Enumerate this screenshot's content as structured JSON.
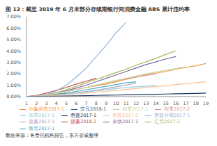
{
  "chart_data": {
    "type": "line",
    "title": "图 12：截至 2019 年 6 月末部分存续期银行间消费金融 ABS 累计违约率",
    "annotations": [
      "数据来源：各受托机构报告，东方金诚整理"
    ],
    "x": [
      1,
      2,
      3,
      4,
      5,
      6,
      7,
      8,
      9,
      10,
      11,
      12,
      13,
      14,
      15,
      16,
      17,
      18,
      19
    ],
    "xlim": [
      1,
      19
    ],
    "xticks": [
      1,
      2,
      3,
      4,
      5,
      6,
      7,
      8,
      9,
      10,
      11,
      12,
      13,
      14,
      15,
      16,
      17,
      18,
      19
    ],
    "ylim": [
      0,
      7
    ],
    "yticks": [
      {
        "value": 0,
        "label": "0.00%"
      },
      {
        "value": 1,
        "label": "1.00%"
      },
      {
        "value": 2,
        "label": "2.00%"
      },
      {
        "value": 3,
        "label": "3.00%"
      },
      {
        "value": 4,
        "label": "4.00%"
      },
      {
        "value": 5,
        "label": "5.00%"
      },
      {
        "value": 6,
        "label": "6.00%"
      },
      {
        "value": 7,
        "label": "7.00%"
      }
    ],
    "grid": false,
    "legend": "bottom",
    "series": [
      {
        "name": "交元2018-1",
        "color": "#2e5c8a",
        "values": [
          0,
          0.02,
          0.08,
          0.18,
          0.3,
          null,
          null,
          null,
          null,
          null,
          null,
          null,
          null,
          null,
          null,
          null,
          null,
          null,
          null
        ]
      },
      {
        "name": "捷赢2018-1",
        "color": "#c0504d",
        "values": [
          0,
          0.1,
          0.3,
          0.55,
          0.8,
          1.1,
          1.35,
          1.6,
          null,
          null,
          null,
          null,
          null,
          null,
          null,
          null,
          null,
          null,
          null
        ]
      },
      {
        "name": "汇元2017-2",
        "color": "#9bbb59",
        "values": [
          0,
          0.05,
          0.15,
          0.35,
          0.6,
          0.9,
          1.2,
          1.5,
          1.8,
          2.1,
          2.4,
          2.75,
          3.05,
          3.35,
          3.7,
          4.0,
          null,
          null,
          null
        ]
      },
      {
        "name": "永动2017-1",
        "color": "#8064a2",
        "values": [
          0,
          0.05,
          0.15,
          0.3,
          0.5,
          0.75,
          1.0,
          1.3,
          1.6,
          1.9,
          2.2,
          2.5,
          2.8,
          3.05,
          3.3,
          3.5,
          null,
          null,
          null
        ]
      },
      {
        "name": "臻元2017-1",
        "color": "#4bacc6",
        "values": [
          0,
          0.03,
          0.1,
          0.2,
          0.3,
          0.45,
          0.6,
          0.75,
          0.9,
          1.05,
          1.2,
          1.3,
          null,
          null,
          null,
          null,
          null,
          null,
          null
        ]
      },
      {
        "name": "中赢易贷2017-1",
        "color": "#f79646",
        "values": [
          0,
          0.05,
          0.15,
          0.3,
          0.45,
          0.6,
          0.8,
          0.95,
          1.1,
          1.3,
          1.5,
          1.7,
          1.9,
          2.05,
          2.2,
          2.4,
          2.55,
          2.7,
          2.9
        ]
      },
      {
        "name": "惠益分期2017-1",
        "color": "#95b3d7",
        "values": [
          0,
          0.05,
          0.2,
          0.5,
          1.0,
          1.7,
          2.5,
          3.5,
          4.5,
          5.6,
          6.5,
          null,
          null,
          null,
          null,
          null,
          null,
          null,
          null
        ]
      },
      {
        "name": "和享2017-2",
        "color": "#d99694",
        "values": [
          0,
          0.05,
          0.15,
          0.3,
          0.45,
          0.6,
          0.8,
          1.0,
          1.2,
          1.4,
          1.55,
          1.7,
          1.85,
          2.0,
          null,
          null,
          null,
          null,
          null
        ]
      },
      {
        "name": "和享2017-1",
        "color": "#c3d69b",
        "values": [
          0,
          0.05,
          0.15,
          0.3,
          0.45,
          0.6,
          0.8,
          1.0,
          1.2,
          1.4,
          1.6,
          1.8,
          2.0,
          2.15,
          2.3,
          2.45,
          2.6,
          null,
          null
        ]
      },
      {
        "name": "捷赢2017-3",
        "color": "#b3a2c7",
        "values": [
          0,
          0.02,
          0.08,
          0.15,
          0.25,
          0.35,
          0.45,
          0.55,
          0.7,
          0.85,
          1.0,
          1.2,
          null,
          null,
          null,
          null,
          null,
          null,
          null
        ]
      },
      {
        "name": "和享2017-3",
        "color": "#93cddd",
        "values": [
          0,
          0.03,
          0.08,
          0.15,
          0.22,
          0.3,
          0.4,
          0.5,
          0.6,
          0.7,
          0.8,
          0.85,
          0.9,
          1.0,
          null,
          null,
          null,
          null,
          null
        ]
      },
      {
        "name": "惠益2017-2",
        "color": "#fac090",
        "values": [
          0,
          0.02,
          0.05,
          0.1,
          0.15,
          0.22,
          0.3,
          0.38,
          0.45,
          0.55,
          0.62,
          0.7,
          0.8,
          0.88,
          0.95,
          1.05,
          1.12,
          1.2,
          1.3
        ]
      },
      {
        "name": "惠益2017-1",
        "color": "#17375e",
        "values": [
          0,
          0.01,
          0.02,
          0.03,
          0.05,
          0.06,
          0.08,
          0.1,
          0.12,
          0.13,
          0.15,
          0.17,
          0.18,
          0.2,
          0.22,
          0.24,
          0.26,
          0.28,
          0.3
        ]
      }
    ]
  }
}
